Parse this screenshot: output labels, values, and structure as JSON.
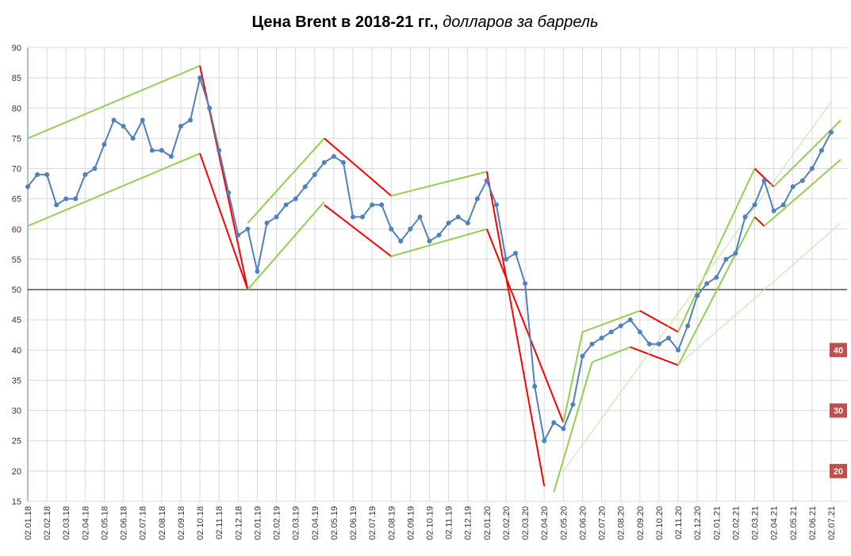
{
  "chart_data": {
    "type": "line",
    "title": "Цена Brent в 2018-21 гг.,",
    "subtitle": "долларов за баррель",
    "categories": [
      "02.01.18",
      null,
      "02.02.18",
      null,
      "02.03.18",
      null,
      "02.04.18",
      null,
      "02.05.18",
      null,
      "02.06.18",
      null,
      "02.07.18",
      null,
      "02.08.18",
      null,
      "02.09.18",
      null,
      "02.10.18",
      null,
      "02.11.18",
      null,
      "02.12.18",
      null,
      "02.01.19",
      null,
      "02.02.19",
      null,
      "02.03.19",
      null,
      "02.04.19",
      null,
      "02.05.19",
      null,
      "02.06.19",
      null,
      "02.07.19",
      null,
      "02.08.19",
      null,
      "02.09.19",
      null,
      "02.10.19",
      null,
      "02.11.19",
      null,
      "02.12.19",
      null,
      "02.01.20",
      null,
      "02.02.20",
      null,
      "02.03.20",
      null,
      "02.04.20",
      null,
      "02.05.20",
      null,
      "02.06.20",
      null,
      "02.07.20",
      null,
      "02.08.20",
      null,
      "02.09.20",
      null,
      "02.10.20",
      null,
      "02.11.20",
      null,
      "02.12.20",
      null,
      "02.01.21",
      null,
      "02.02.21",
      null,
      "02.03.21",
      null,
      "02.04.21",
      null,
      "02.05.21",
      null,
      "02.06.21",
      null,
      "02.07.21"
    ],
    "series": [
      {
        "name": "Brent",
        "color": "#4f81bd",
        "values": [
          67,
          69,
          69,
          64,
          65,
          65,
          69,
          70,
          74,
          78,
          77,
          75,
          78,
          73,
          73,
          72,
          77,
          78,
          85,
          80,
          73,
          66,
          59,
          60,
          53,
          61,
          62,
          64,
          65,
          67,
          69,
          71,
          72,
          71,
          62,
          62,
          64,
          64,
          60,
          58,
          60,
          62,
          58,
          59,
          61,
          62,
          61,
          65,
          68,
          64,
          55,
          56,
          51,
          34,
          25,
          28,
          27,
          31,
          39,
          41,
          42,
          43,
          44,
          45,
          43,
          41,
          41,
          42,
          40,
          44,
          49,
          51,
          52,
          55,
          56,
          62,
          64,
          68,
          63,
          64,
          67,
          68,
          70,
          73,
          76
        ]
      }
    ],
    "ylim": [
      15,
      90
    ],
    "yticks": [
      15,
      20,
      25,
      30,
      35,
      40,
      45,
      50,
      55,
      60,
      65,
      70,
      75,
      80,
      85,
      90
    ],
    "grid": true,
    "reference_line": 50,
    "level_labels": [
      40,
      30,
      20
    ],
    "trend_lines": [
      {
        "color": "#92d050",
        "points": [
          [
            0,
            75
          ],
          [
            18,
            87
          ]
        ]
      },
      {
        "color": "#92d050",
        "points": [
          [
            0,
            60.5
          ],
          [
            18,
            72.5
          ]
        ]
      },
      {
        "color": "#ff0000",
        "points": [
          [
            18,
            87
          ],
          [
            23,
            50
          ]
        ]
      },
      {
        "color": "#ff0000",
        "points": [
          [
            18,
            72.5
          ],
          [
            23,
            50
          ]
        ]
      },
      {
        "color": "#92d050",
        "points": [
          [
            23,
            61
          ],
          [
            31,
            75
          ]
        ]
      },
      {
        "color": "#92d050",
        "points": [
          [
            23,
            50
          ],
          [
            31,
            64.5
          ]
        ]
      },
      {
        "color": "#ff0000",
        "points": [
          [
            31,
            75
          ],
          [
            38,
            65.5
          ]
        ]
      },
      {
        "color": "#ff0000",
        "points": [
          [
            31,
            64
          ],
          [
            38,
            55.5
          ]
        ]
      },
      {
        "color": "#92d050",
        "points": [
          [
            38,
            65.5
          ],
          [
            48,
            69.5
          ]
        ]
      },
      {
        "color": "#92d050",
        "points": [
          [
            38,
            55.5
          ],
          [
            48,
            60
          ]
        ]
      },
      {
        "color": "#ff0000",
        "points": [
          [
            48,
            69.5
          ],
          [
            54,
            17.5
          ]
        ]
      },
      {
        "color": "#ff0000",
        "points": [
          [
            48,
            60
          ],
          [
            56,
            28
          ]
        ]
      },
      {
        "color": "#92d050",
        "points": [
          [
            55,
            16.5
          ],
          [
            59,
            38
          ],
          [
            63,
            40.5
          ]
        ]
      },
      {
        "color": "#92d050",
        "points": [
          [
            56,
            28
          ],
          [
            58,
            43
          ],
          [
            64,
            46.5
          ]
        ]
      },
      {
        "color": "#ff0000",
        "points": [
          [
            64,
            46.5
          ],
          [
            68,
            43
          ]
        ]
      },
      {
        "color": "#ff0000",
        "points": [
          [
            63,
            40.5
          ],
          [
            68,
            37.5
          ]
        ]
      },
      {
        "color": "#92d050",
        "points": [
          [
            68,
            43
          ],
          [
            76,
            70
          ]
        ]
      },
      {
        "color": "#92d050",
        "points": [
          [
            68,
            37.5
          ],
          [
            76,
            62
          ]
        ]
      },
      {
        "color": "#ff0000",
        "points": [
          [
            76,
            70
          ],
          [
            78,
            67
          ]
        ]
      },
      {
        "color": "#ff0000",
        "points": [
          [
            76,
            62
          ],
          [
            77,
            60.5
          ]
        ]
      },
      {
        "color": "#92d050",
        "points": [
          [
            77,
            60.5
          ],
          [
            85,
            71.5
          ]
        ]
      },
      {
        "color": "#92d050",
        "points": [
          [
            78,
            67
          ],
          [
            85,
            78
          ]
        ]
      },
      {
        "color": "#c4e59f",
        "points": [
          [
            56,
            20
          ],
          [
            84,
            81
          ]
        ]
      },
      {
        "color": "#c4e59f",
        "points": [
          [
            68,
            37.5
          ],
          [
            85,
            61
          ]
        ]
      }
    ]
  }
}
